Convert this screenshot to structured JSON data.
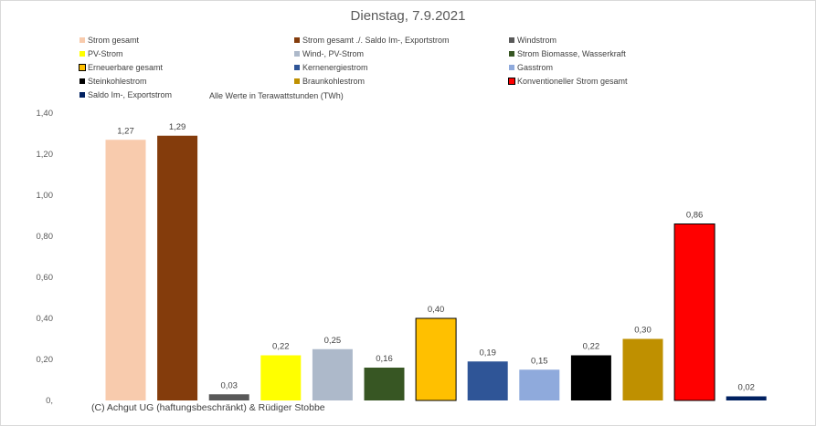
{
  "chart_data": {
    "type": "bar",
    "title": "Dienstag, 7.9.2021",
    "note": "Alle Werte in Terawattstunden (TWh)",
    "copyright": "(C) Achgut UG (haftungsbeschränkt) & Rüdiger Stobbe",
    "ylim": [
      0,
      1.4
    ],
    "yticks": [
      "0,",
      "0,20",
      "0,40",
      "0,60",
      "0,80",
      "1,00",
      "1,20",
      "1,40"
    ],
    "categories": [
      "Strom gesamt",
      "Strom gesamt ./. Saldo Im-, Exportstrom",
      "Windstrom",
      "PV-Strom",
      "Wind-, PV-Strom",
      "Strom Biomasse, Wasserkraft",
      "Erneuerbare gesamt",
      "Kernenergiestrom",
      "Gasstrom",
      "Steinkohlestrom",
      "Braunkohlestrom",
      "Konventioneller Strom gesamt",
      "Saldo Im-, Exportstrom"
    ],
    "values": [
      1.27,
      1.29,
      0.03,
      0.22,
      0.25,
      0.16,
      0.4,
      0.19,
      0.15,
      0.22,
      0.3,
      0.86,
      0.02
    ],
    "value_labels": [
      "1,27",
      "1,29",
      "0,03",
      "0,22",
      "0,25",
      "0,16",
      "0,40",
      "0,19",
      "0,15",
      "0,22",
      "0,30",
      "0,86",
      "0,02"
    ],
    "colors": [
      "#f8cbad",
      "#843c0c",
      "#595959",
      "#ffff00",
      "#adb9ca",
      "#375623",
      "#ffc000",
      "#2f5597",
      "#8faadc",
      "#000000",
      "#bf9000",
      "#ff0000",
      "#002060"
    ],
    "outlined": [
      false,
      false,
      false,
      false,
      false,
      false,
      true,
      false,
      false,
      false,
      false,
      true,
      false
    ],
    "legend_placement": "top",
    "grid": false
  }
}
